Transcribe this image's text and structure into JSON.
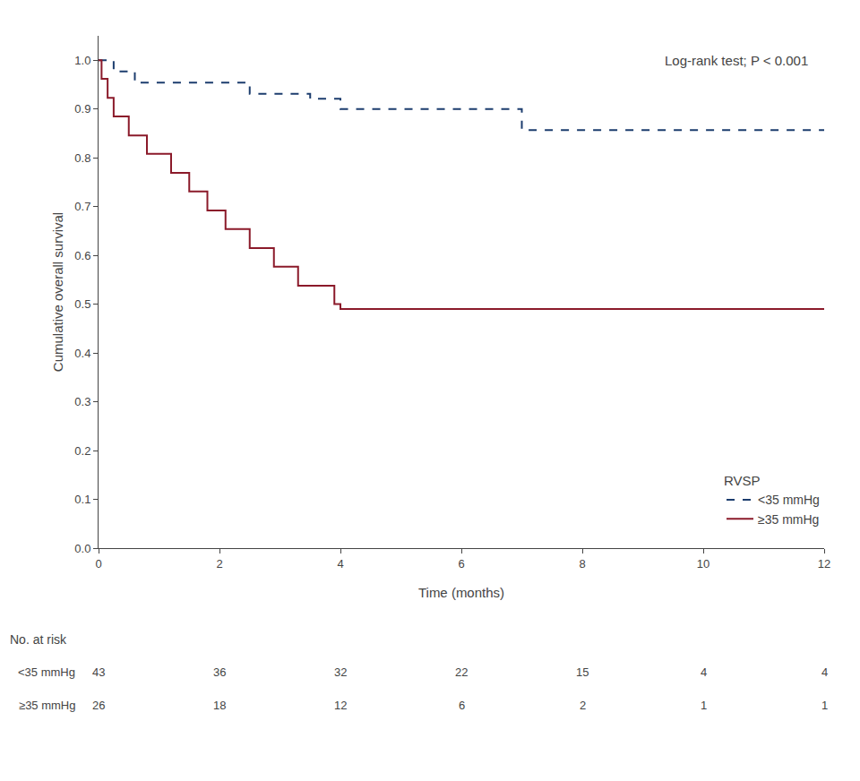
{
  "chart_data": {
    "type": "line",
    "annotation": "Log-rank test; P < 0.001",
    "xlabel": "Time (months)",
    "ylabel": "Cumulative overall survival",
    "xlim": [
      0,
      12
    ],
    "ylim": [
      0.0,
      1.05
    ],
    "xticks": [
      0,
      2,
      4,
      6,
      8,
      10,
      12
    ],
    "yticks": [
      {
        "value": 0.0,
        "label": "0.0"
      },
      0.1,
      0.2,
      0.3,
      0.4,
      0.5,
      0.6,
      0.7,
      0.8,
      0.9,
      {
        "value": 1.0,
        "label": "1.0"
      }
    ],
    "grid": false,
    "legend": "lower right",
    "legend_title": "RVSP",
    "series": [
      {
        "name": "<35 mmHg",
        "color": "#1c3d6e",
        "line_style": "dashed",
        "x": [
          0,
          0.15,
          0.25,
          0.4,
          0.6,
          0.8,
          1.0,
          1.5,
          2.0,
          2.5,
          3.0,
          3.5,
          4.0,
          5.0,
          5.5,
          6.0,
          7.0,
          12.0
        ],
        "values": [
          1.0,
          1.0,
          0.977,
          0.977,
          0.954,
          0.954,
          0.954,
          0.954,
          0.954,
          0.931,
          0.931,
          0.921,
          0.9,
          0.9,
          0.9,
          0.9,
          0.857,
          0.857
        ]
      },
      {
        "name": "≥35 mmHg",
        "color": "#8b1a2a",
        "line_style": "solid",
        "x": [
          0,
          0.05,
          0.15,
          0.25,
          0.4,
          0.5,
          0.6,
          0.8,
          1.0,
          1.2,
          1.4,
          1.5,
          1.6,
          1.8,
          2.0,
          2.1,
          2.3,
          2.5,
          2.7,
          2.9,
          3.1,
          3.3,
          3.5,
          3.7,
          3.9,
          4.0,
          4.5,
          12.0
        ],
        "values": [
          1.0,
          0.962,
          0.923,
          0.885,
          0.885,
          0.846,
          0.846,
          0.808,
          0.808,
          0.769,
          0.769,
          0.731,
          0.731,
          0.692,
          0.692,
          0.654,
          0.654,
          0.615,
          0.615,
          0.577,
          0.577,
          0.538,
          0.538,
          0.538,
          0.5,
          0.49,
          0.49,
          0.49
        ]
      }
    ],
    "risk_table": {
      "title": "No. at risk",
      "x": [
        0,
        2,
        4,
        6,
        8,
        10,
        12
      ],
      "series": [
        {
          "name": "<35 mmHg",
          "values": [
            43,
            36,
            32,
            22,
            15,
            4,
            4
          ]
        },
        {
          "name": "≥35 mmHg",
          "values": [
            26,
            18,
            12,
            6,
            2,
            1,
            1
          ]
        }
      ]
    }
  }
}
